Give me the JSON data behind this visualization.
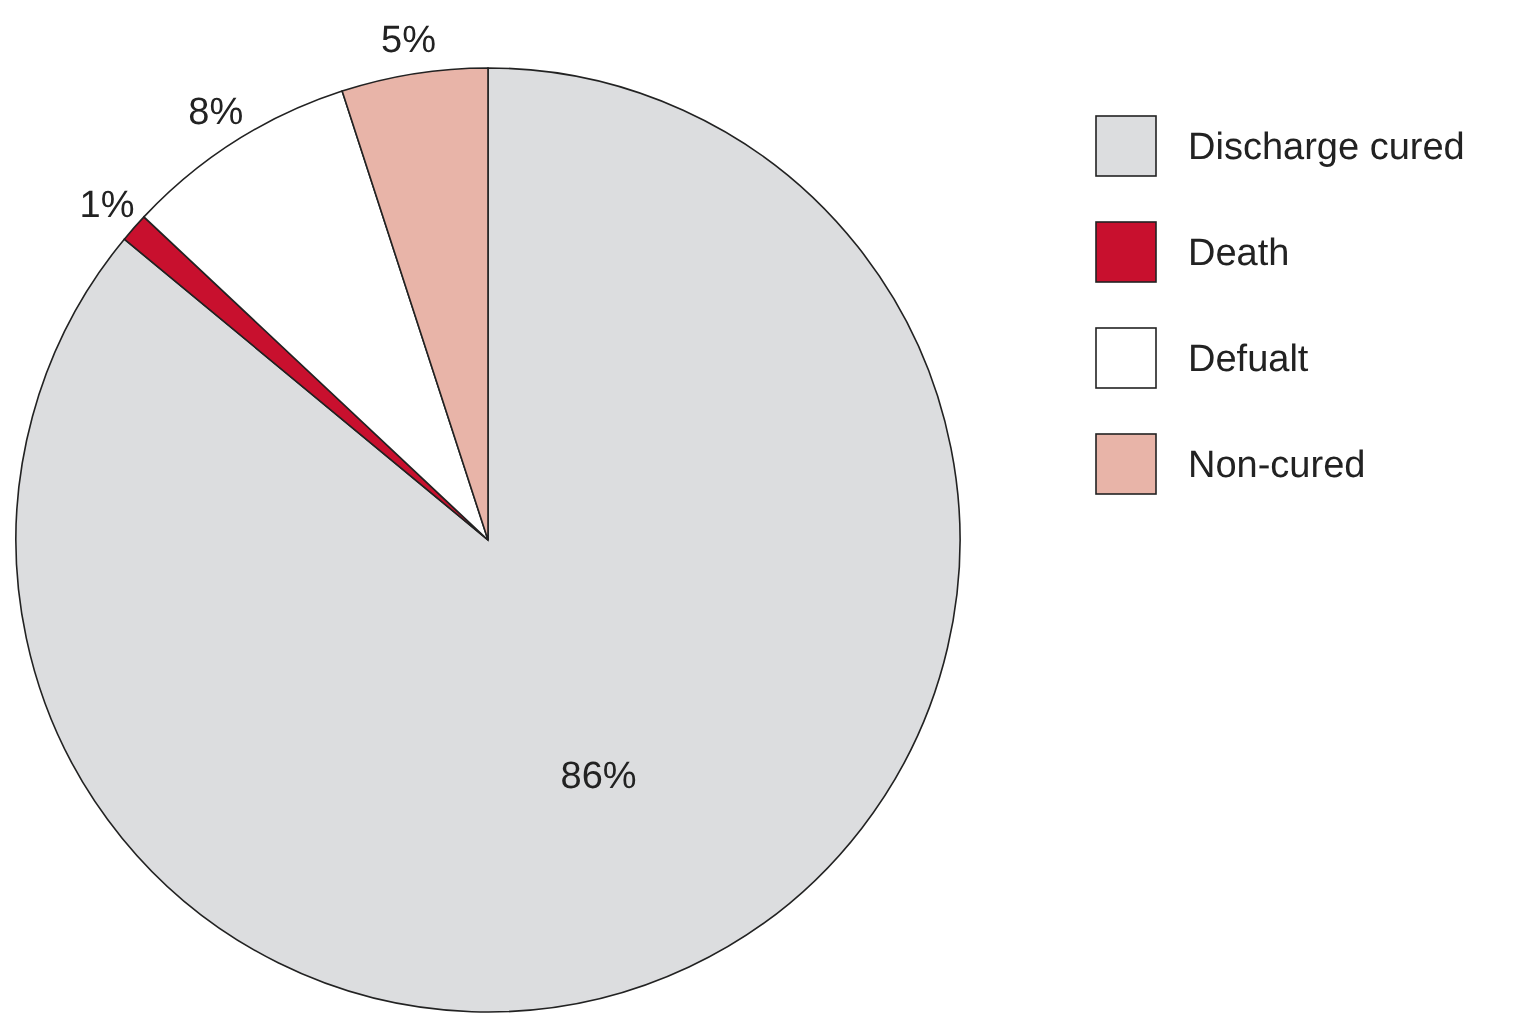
{
  "chart_data": {
    "type": "pie",
    "categories": [
      "Discharge cured",
      "Death",
      "Defualt",
      "Non-cured"
    ],
    "values": [
      86,
      1,
      8,
      5
    ],
    "colors": [
      "#dcdddf",
      "#c8102e",
      "#ffffff",
      "#e8b4a8"
    ],
    "value_labels": [
      "86%",
      "1%",
      "8%",
      "5%"
    ],
    "legend": "top right"
  }
}
